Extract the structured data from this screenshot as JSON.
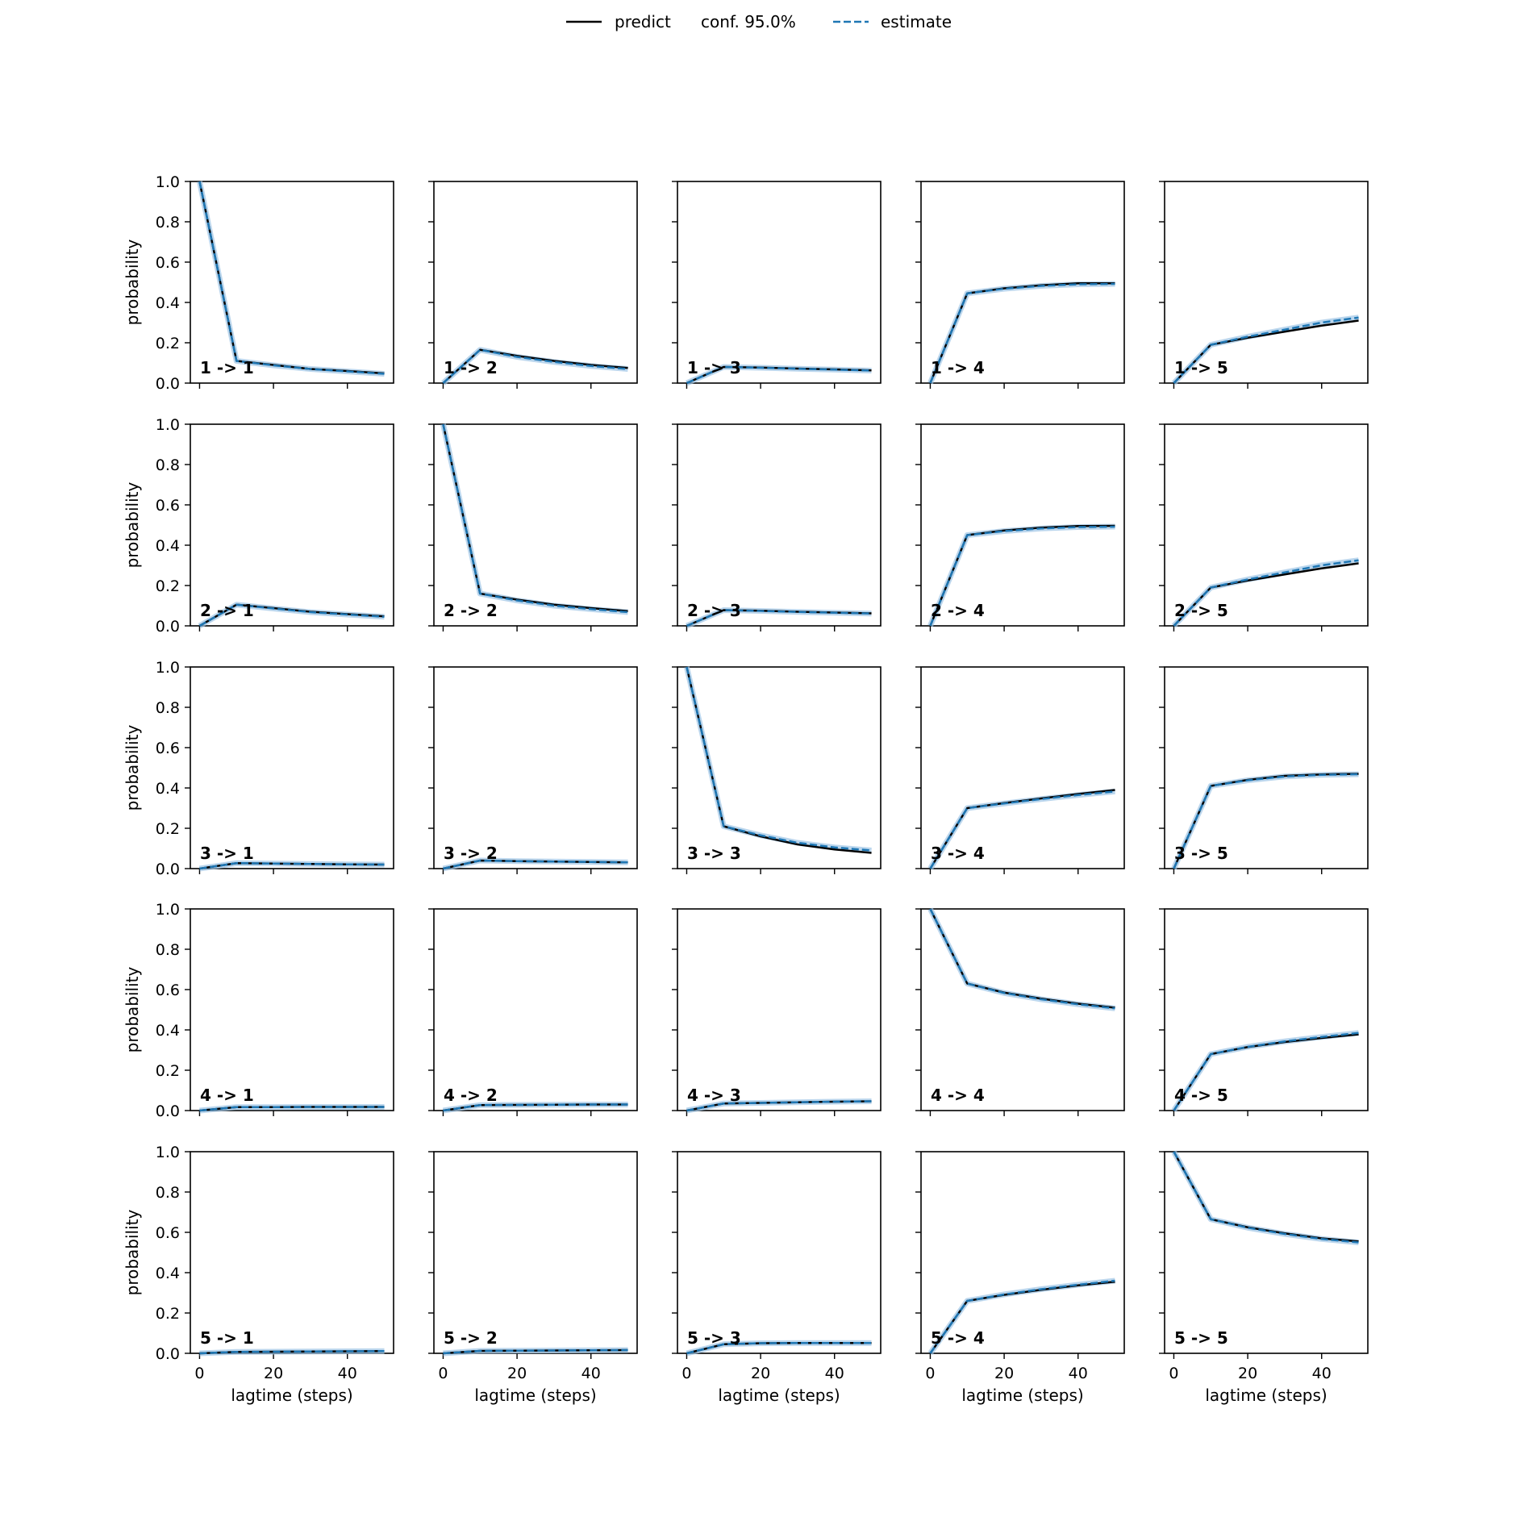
{
  "legend": {
    "predict_label": "predict",
    "conf_label": "conf. 95.0%",
    "estimate_label": "estimate",
    "placement": "top-center"
  },
  "colors": {
    "predict": "#000000",
    "estimate": "#1f77b4",
    "conf_band": "#9ec5e6"
  },
  "chart_data": {
    "type": "line",
    "layout": "5x5 grid",
    "xlabel": "lagtime (steps)",
    "ylabel": "probability",
    "xlim": [
      -2.5,
      52.5
    ],
    "ylim": [
      0,
      1
    ],
    "xticks": [
      0,
      20,
      40
    ],
    "yticks": [
      0.0,
      0.2,
      0.4,
      0.6,
      0.8,
      1.0
    ],
    "x": [
      0,
      10,
      20,
      30,
      40,
      50
    ],
    "panels": [
      {
        "label": "1 -> 1",
        "predict": [
          1.0,
          0.11,
          0.09,
          0.07,
          0.06,
          0.048
        ],
        "estimate": [
          1.0,
          0.11,
          0.088,
          0.07,
          0.058,
          0.046
        ]
      },
      {
        "label": "1 -> 2",
        "predict": [
          0.0,
          0.165,
          0.135,
          0.11,
          0.09,
          0.075
        ],
        "estimate": [
          0.0,
          0.165,
          0.13,
          0.105,
          0.085,
          0.07
        ]
      },
      {
        "label": "1 -> 3",
        "predict": [
          0.0,
          0.08,
          0.077,
          0.072,
          0.068,
          0.063
        ],
        "estimate": [
          0.0,
          0.08,
          0.076,
          0.071,
          0.067,
          0.062
        ]
      },
      {
        "label": "1 -> 4",
        "predict": [
          0.0,
          0.445,
          0.47,
          0.485,
          0.495,
          0.495
        ],
        "estimate": [
          0.0,
          0.445,
          0.468,
          0.482,
          0.49,
          0.492
        ]
      },
      {
        "label": "1 -> 5",
        "predict": [
          0.0,
          0.19,
          0.225,
          0.255,
          0.285,
          0.31
        ],
        "estimate": [
          0.0,
          0.19,
          0.23,
          0.265,
          0.3,
          0.325
        ]
      },
      {
        "label": "2 -> 1",
        "predict": [
          0.0,
          0.105,
          0.088,
          0.07,
          0.058,
          0.047
        ],
        "estimate": [
          0.0,
          0.105,
          0.086,
          0.068,
          0.056,
          0.045
        ]
      },
      {
        "label": "2 -> 2",
        "predict": [
          1.0,
          0.16,
          0.13,
          0.105,
          0.088,
          0.073
        ],
        "estimate": [
          1.0,
          0.16,
          0.126,
          0.1,
          0.083,
          0.068
        ]
      },
      {
        "label": "2 -> 3",
        "predict": [
          0.0,
          0.078,
          0.075,
          0.07,
          0.066,
          0.062
        ],
        "estimate": [
          0.0,
          0.078,
          0.074,
          0.069,
          0.065,
          0.061
        ]
      },
      {
        "label": "2 -> 4",
        "predict": [
          0.0,
          0.45,
          0.473,
          0.487,
          0.495,
          0.496
        ],
        "estimate": [
          0.0,
          0.45,
          0.47,
          0.483,
          0.49,
          0.492
        ]
      },
      {
        "label": "2 -> 5",
        "predict": [
          0.0,
          0.19,
          0.225,
          0.255,
          0.285,
          0.31
        ],
        "estimate": [
          0.0,
          0.19,
          0.23,
          0.265,
          0.3,
          0.325
        ]
      },
      {
        "label": "3 -> 1",
        "predict": [
          0.0,
          0.027,
          0.025,
          0.023,
          0.021,
          0.02
        ],
        "estimate": [
          0.0,
          0.027,
          0.025,
          0.023,
          0.021,
          0.02
        ]
      },
      {
        "label": "3 -> 2",
        "predict": [
          0.0,
          0.04,
          0.037,
          0.035,
          0.033,
          0.031
        ],
        "estimate": [
          0.0,
          0.04,
          0.037,
          0.035,
          0.033,
          0.031
        ]
      },
      {
        "label": "3 -> 3",
        "predict": [
          1.0,
          0.21,
          0.16,
          0.12,
          0.095,
          0.078
        ],
        "estimate": [
          1.0,
          0.21,
          0.165,
          0.128,
          0.105,
          0.09
        ]
      },
      {
        "label": "3 -> 4",
        "predict": [
          0.0,
          0.3,
          0.325,
          0.348,
          0.37,
          0.39
        ],
        "estimate": [
          0.0,
          0.3,
          0.323,
          0.345,
          0.365,
          0.383
        ]
      },
      {
        "label": "3 -> 5",
        "predict": [
          0.0,
          0.41,
          0.44,
          0.46,
          0.467,
          0.47
        ],
        "estimate": [
          0.0,
          0.41,
          0.438,
          0.457,
          0.465,
          0.468
        ]
      },
      {
        "label": "4 -> 1",
        "predict": [
          0.0,
          0.017,
          0.017,
          0.018,
          0.018,
          0.018
        ],
        "estimate": [
          0.0,
          0.017,
          0.017,
          0.018,
          0.018,
          0.018
        ]
      },
      {
        "label": "4 -> 2",
        "predict": [
          0.0,
          0.027,
          0.028,
          0.029,
          0.03,
          0.03
        ],
        "estimate": [
          0.0,
          0.027,
          0.028,
          0.029,
          0.03,
          0.03
        ]
      },
      {
        "label": "4 -> 3",
        "predict": [
          0.0,
          0.035,
          0.038,
          0.041,
          0.044,
          0.046
        ],
        "estimate": [
          0.0,
          0.035,
          0.038,
          0.041,
          0.044,
          0.046
        ]
      },
      {
        "label": "4 -> 4",
        "predict": [
          1.0,
          0.63,
          0.585,
          0.555,
          0.53,
          0.51
        ],
        "estimate": [
          1.0,
          0.63,
          0.583,
          0.552,
          0.527,
          0.507
        ]
      },
      {
        "label": "4 -> 5",
        "predict": [
          0.0,
          0.28,
          0.315,
          0.34,
          0.36,
          0.378
        ],
        "estimate": [
          0.0,
          0.28,
          0.316,
          0.343,
          0.365,
          0.385
        ]
      },
      {
        "label": "5 -> 1",
        "predict": [
          0.0,
          0.007,
          0.008,
          0.009,
          0.01,
          0.011
        ],
        "estimate": [
          0.0,
          0.007,
          0.008,
          0.009,
          0.01,
          0.011
        ]
      },
      {
        "label": "5 -> 2",
        "predict": [
          0.0,
          0.012,
          0.013,
          0.014,
          0.015,
          0.016
        ],
        "estimate": [
          0.0,
          0.012,
          0.013,
          0.014,
          0.015,
          0.016
        ]
      },
      {
        "label": "5 -> 3",
        "predict": [
          0.0,
          0.045,
          0.05,
          0.051,
          0.051,
          0.051
        ],
        "estimate": [
          0.0,
          0.045,
          0.05,
          0.051,
          0.051,
          0.051
        ]
      },
      {
        "label": "5 -> 4",
        "predict": [
          0.0,
          0.26,
          0.29,
          0.315,
          0.337,
          0.355
        ],
        "estimate": [
          0.0,
          0.26,
          0.292,
          0.318,
          0.34,
          0.36
        ]
      },
      {
        "label": "5 -> 5",
        "predict": [
          1.0,
          0.665,
          0.625,
          0.595,
          0.57,
          0.555
        ],
        "estimate": [
          1.0,
          0.665,
          0.623,
          0.592,
          0.567,
          0.55
        ]
      }
    ]
  }
}
